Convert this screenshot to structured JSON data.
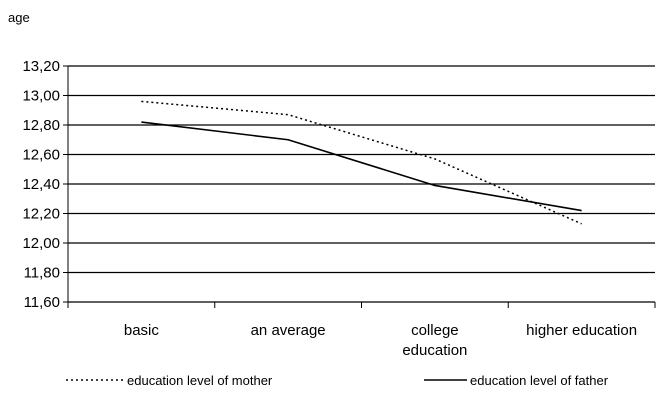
{
  "chart_data": {
    "type": "line",
    "ylabel": "age",
    "ylim": [
      11.6,
      13.2
    ],
    "ytick_step": 0.2,
    "ytick_labels": [
      "11,60",
      "11,80",
      "12,00",
      "12,20",
      "12,40",
      "12,60",
      "12,80",
      "13,00",
      "13,20"
    ],
    "categories": [
      [
        "basic"
      ],
      [
        "an average"
      ],
      [
        "college",
        "education"
      ],
      [
        "higher education"
      ]
    ],
    "grid": "horizontal",
    "legend_position": "bottom",
    "series": [
      {
        "name": "education level of mother",
        "style": "dotted",
        "color": "#000000",
        "values": [
          12.96,
          12.87,
          12.57,
          12.13
        ]
      },
      {
        "name": "education level of father",
        "style": "solid",
        "color": "#000000",
        "values": [
          12.82,
          12.7,
          12.39,
          12.22
        ]
      }
    ]
  }
}
